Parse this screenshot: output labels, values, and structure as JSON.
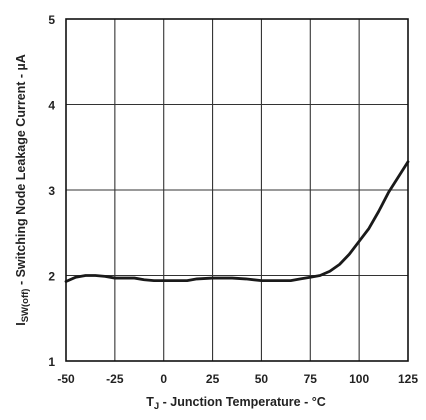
{
  "chart_data": {
    "type": "line",
    "xlim": [
      -50,
      125
    ],
    "ylim": [
      1,
      5
    ],
    "x_ticks": [
      "-50",
      "-25",
      "0",
      "25",
      "50",
      "75",
      "100",
      "125"
    ],
    "y_ticks": [
      "1",
      "2",
      "3",
      "4",
      "5"
    ],
    "grid": true,
    "xlabel": {
      "symbol": "T",
      "subscript": "J",
      "text": " - Junction Temperature - °C"
    },
    "ylabel": {
      "symbol": "I",
      "subscript": "SW(off)",
      "text": " - Switching Node Leakage Current - µA"
    },
    "series": [
      {
        "color": "#1a1a1a",
        "points": [
          [
            -50,
            1.93
          ],
          [
            -45,
            1.98
          ],
          [
            -40,
            2.0
          ],
          [
            -35,
            2.0
          ],
          [
            -30,
            1.99
          ],
          [
            -25,
            1.97
          ],
          [
            -15,
            1.97
          ],
          [
            -10,
            1.95
          ],
          [
            -5,
            1.94
          ],
          [
            0,
            1.94
          ],
          [
            5,
            1.94
          ],
          [
            12,
            1.94
          ],
          [
            17,
            1.96
          ],
          [
            25,
            1.97
          ],
          [
            35,
            1.97
          ],
          [
            42,
            1.96
          ],
          [
            50,
            1.94
          ],
          [
            60,
            1.94
          ],
          [
            65,
            1.94
          ],
          [
            70,
            1.96
          ],
          [
            75,
            1.98
          ],
          [
            80,
            2.0
          ],
          [
            85,
            2.05
          ],
          [
            90,
            2.13
          ],
          [
            95,
            2.25
          ],
          [
            100,
            2.4
          ],
          [
            105,
            2.55
          ],
          [
            110,
            2.75
          ],
          [
            115,
            2.97
          ],
          [
            120,
            3.15
          ],
          [
            125,
            3.33
          ]
        ]
      }
    ]
  },
  "colors": {
    "line": "#1a1a1a",
    "grid": "#333333",
    "frame": "#111111",
    "text": "#222222"
  }
}
